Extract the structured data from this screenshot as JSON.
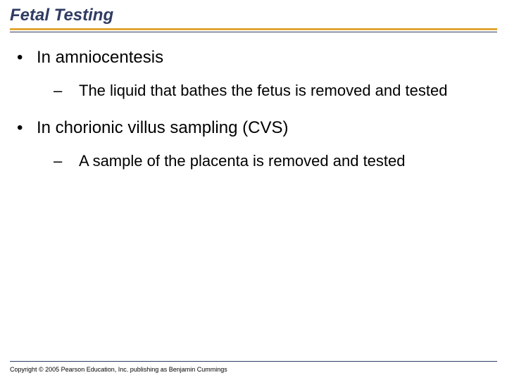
{
  "title": {
    "text": "Fetal Testing",
    "color": "#2f3b63",
    "fontsize": 24
  },
  "underline": {
    "thick_color": "#e3a634",
    "thin_color": "#2f3b63"
  },
  "body": {
    "color": "#000000",
    "level1_fontsize": 24,
    "level2_fontsize": 22,
    "items": [
      {
        "bullet": "•",
        "text": "In amniocentesis",
        "sub": [
          {
            "dash": "–",
            "text": "The liquid that bathes the fetus is removed and tested"
          }
        ]
      },
      {
        "bullet": "•",
        "text": "In chorionic villus sampling (CVS)",
        "sub": [
          {
            "dash": "–",
            "text": "A sample of the placenta is removed and tested"
          }
        ]
      }
    ]
  },
  "footer": {
    "line_color": "#2f3b63",
    "copyright_text": "Copyright © 2005 Pearson Education, Inc. publishing as Benjamin Cummings",
    "copyright_color": "#000000",
    "copyright_fontsize": 9
  }
}
